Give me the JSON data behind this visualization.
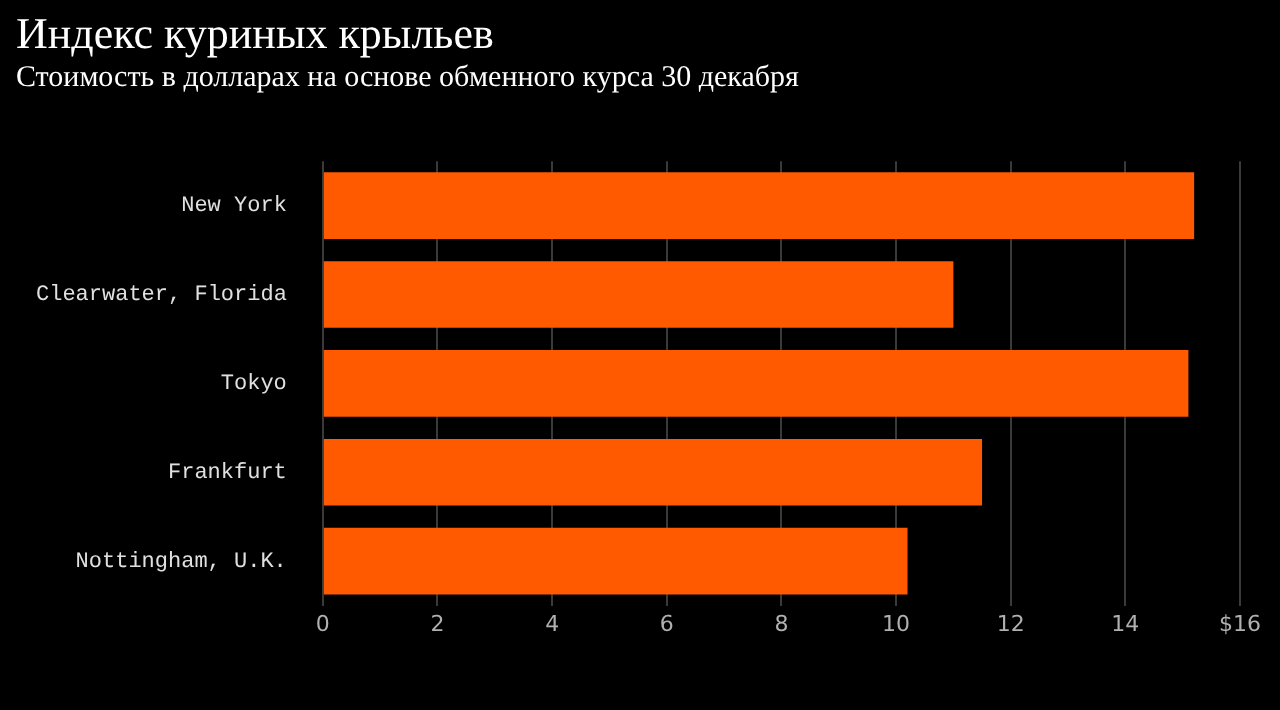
{
  "chart_data": {
    "type": "bar",
    "orientation": "horizontal",
    "title": "Индекс куриных крыльев",
    "subtitle": "Стоимость в долларах на основе обменного курса 30 декабря",
    "categories": [
      "New York",
      "Clearwater, Florida",
      "Tokyo",
      "Frankfurt",
      "Nottingham, U.K."
    ],
    "values": [
      15.2,
      11.0,
      15.1,
      11.5,
      10.2
    ],
    "color": "#ff5a00",
    "xlim": [
      0,
      16
    ],
    "xticks": [
      0,
      2,
      4,
      6,
      8,
      10,
      12,
      14,
      {
        "value": 16,
        "label": "$16"
      }
    ],
    "grid": "x",
    "legend": false
  }
}
